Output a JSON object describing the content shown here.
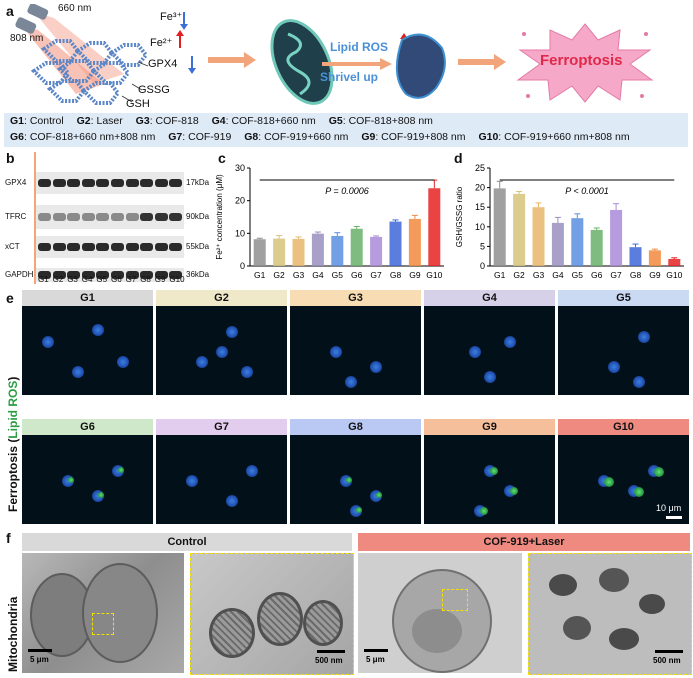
{
  "panel_labels": {
    "a": "a",
    "b": "b",
    "c": "c",
    "d": "d",
    "e": "e",
    "f": "f"
  },
  "schematic": {
    "wavelength_660": "660 nm",
    "wavelength_808": "808 nm",
    "fe3": "Fe³⁺",
    "fe2": "Fe²⁺",
    "gpx4": "GPX4",
    "gssg": "GSSG",
    "gsh": "GSH",
    "lipid_ros": "Lipid ROS",
    "shrivel_up": "Shrivel up",
    "ferroptosis": "Ferroptosis",
    "colors": {
      "lipid_ros": "#4a90d9",
      "ferroptosis": "#e0284a",
      "up_arrow": "#e02020",
      "down_arrow": "#3a6fd8",
      "burst": "#f6a8c8"
    }
  },
  "legend": {
    "row1": [
      {
        "id": "G1",
        "text": ": Control"
      },
      {
        "id": "G2",
        "text": ": Laser"
      },
      {
        "id": "G3",
        "text": ": COF-818"
      },
      {
        "id": "G4",
        "text": ": COF-818+660 nm"
      },
      {
        "id": "G5",
        "text": ": COF-818+808 nm"
      }
    ],
    "row2": [
      {
        "id": "G6",
        "text": ": COF-818+660 nm+808 nm"
      },
      {
        "id": "G7",
        "text": ": COF-919"
      },
      {
        "id": "G8",
        "text": ": COF-919+660 nm"
      },
      {
        "id": "G9",
        "text": ": COF-919+808 nm"
      },
      {
        "id": "G10",
        "text": ": COF-919+660 nm+808 nm"
      }
    ]
  },
  "blot": {
    "rows": [
      {
        "protein": "GPX4",
        "kda": "17kDa"
      },
      {
        "protein": "TFRC",
        "kda": "90kDa"
      },
      {
        "protein": "xCT",
        "kda": "55kDa"
      },
      {
        "protein": "GAPDH",
        "kda": "36kDa"
      }
    ],
    "lanes": [
      "G1",
      "G2",
      "G3",
      "G4",
      "G5",
      "G6",
      "G7",
      "G8",
      "G9",
      "G10"
    ]
  },
  "chart_data": [
    {
      "type": "bar",
      "panel": "c",
      "categories": [
        "G1",
        "G2",
        "G3",
        "G4",
        "G5",
        "G6",
        "G7",
        "G8",
        "G9",
        "G10"
      ],
      "values": [
        8.2,
        8.4,
        8.3,
        9.9,
        9.2,
        11.4,
        8.9,
        13.6,
        14.4,
        23.8
      ],
      "errors": [
        0.3,
        0.9,
        0.6,
        0.5,
        1.0,
        0.7,
        0.3,
        0.5,
        1.1,
        2.5
      ],
      "ylabel": "Fe²⁺ concentration (μM)",
      "ylim": [
        0,
        30
      ],
      "yticks": [
        0,
        10,
        20,
        30
      ],
      "annotation": "P = 0.0006",
      "grid": false,
      "colors": [
        "#8f8f8f",
        "#d6c47a",
        "#e6b66a",
        "#9a8fc0",
        "#5a8ee0",
        "#6ab06a",
        "#a98ad8",
        "#3e66d8",
        "#f28a40",
        "#e52222"
      ]
    },
    {
      "type": "bar",
      "panel": "d",
      "categories": [
        "G1",
        "G2",
        "G3",
        "G4",
        "G5",
        "G6",
        "G7",
        "G8",
        "G9",
        "G10"
      ],
      "values": [
        19.8,
        18.4,
        15.0,
        11.0,
        12.2,
        9.2,
        14.3,
        4.8,
        4.0,
        1.8
      ],
      "errors": [
        1.8,
        0.6,
        1.1,
        1.4,
        1.1,
        0.5,
        1.6,
        0.8,
        0.3,
        0.3
      ],
      "ylabel": "GSH/GSSG ratio",
      "ylim": [
        0,
        25
      ],
      "yticks": [
        0,
        5,
        10,
        15,
        20,
        25
      ],
      "annotation": "P < 0.0001",
      "grid": false,
      "colors": [
        "#8f8f8f",
        "#d6c47a",
        "#e6b66a",
        "#9a8fc0",
        "#5a8ee0",
        "#6ab06a",
        "#a98ad8",
        "#3e66d8",
        "#f28a40",
        "#e52222"
      ]
    }
  ],
  "micro": {
    "side_label_prefix": "Ferroptosis (",
    "side_label_green": "Lipid ROS",
    "side_label_suffix": ")",
    "scale": "10 μm",
    "groups": [
      {
        "label": "G1",
        "color": "#d9d9d9"
      },
      {
        "label": "G2",
        "color": "#efe8c9"
      },
      {
        "label": "G3",
        "color": "#f7dcb4"
      },
      {
        "label": "G4",
        "color": "#d6d1e8"
      },
      {
        "label": "G5",
        "color": "#c9daf2"
      },
      {
        "label": "G6",
        "color": "#cfe8c9"
      },
      {
        "label": "G7",
        "color": "#e3cdef"
      },
      {
        "label": "G8",
        "color": "#b9c9f3"
      },
      {
        "label": "G9",
        "color": "#f6bf9b"
      },
      {
        "label": "G10",
        "color": "#ef8a80"
      }
    ]
  },
  "tem": {
    "side_label": "Mitochondria",
    "control": "Control",
    "treated": "COF-919+Laser",
    "control_color": "#d9d9d9",
    "treated_color": "#ef8a80",
    "scale_5": "5 μm",
    "scale_500": "500 nm"
  }
}
